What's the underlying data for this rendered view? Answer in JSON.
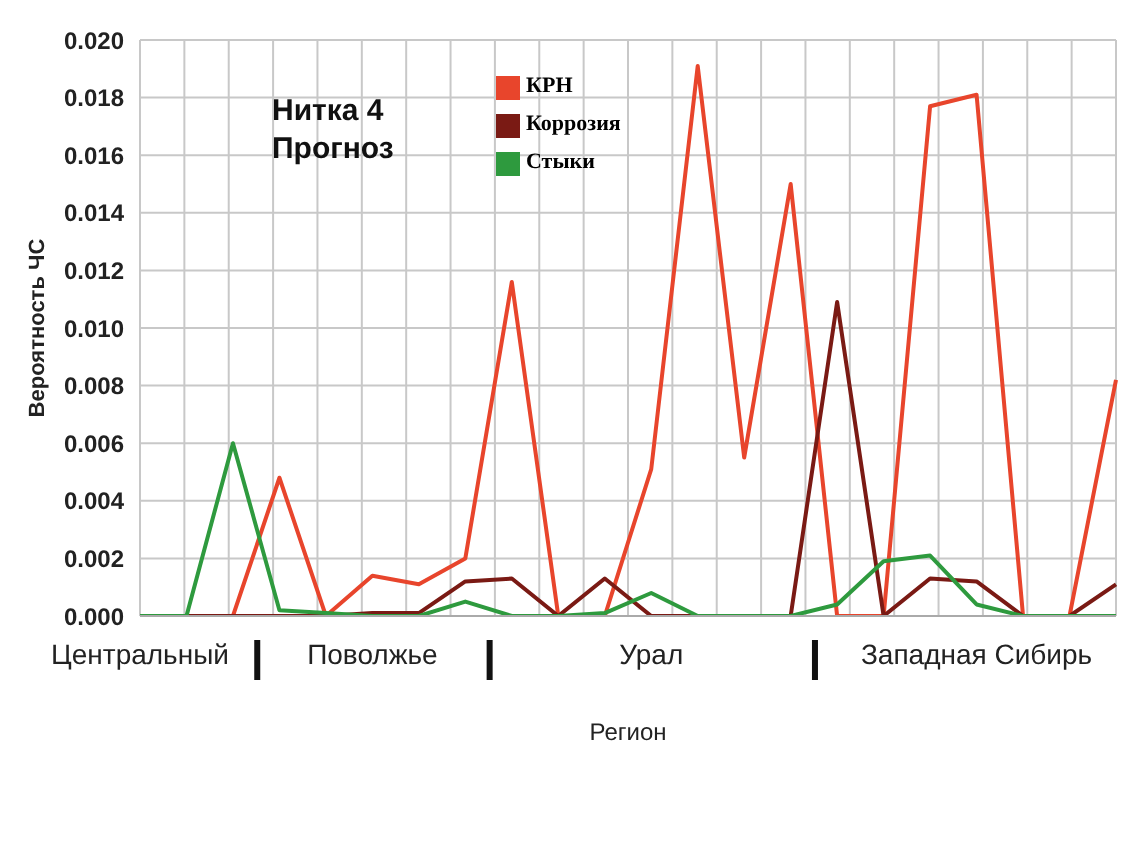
{
  "chart_data": {
    "type": "line",
    "title": "Нитка 4",
    "subtitle": "Прогноз",
    "xlabel": "Регион",
    "ylabel": "Вероятность ЧС",
    "categories": [
      "Центральный",
      null,
      null,
      null,
      null,
      "Поволжье",
      null,
      null,
      null,
      null,
      null,
      "Урал",
      null,
      null,
      null,
      null,
      null,
      null,
      "Западная Сибирь",
      null,
      null,
      null
    ],
    "series": [
      {
        "name": "КРН",
        "color": "#e8452c",
        "values": [
          0,
          0,
          0,
          0.0048,
          0,
          0.0014,
          0.0011,
          0.002,
          0.0116,
          0,
          0,
          0.0051,
          0.0191,
          0.0055,
          0.015,
          0,
          0,
          0.0177,
          0.0181,
          0,
          0,
          0.0082
        ]
      },
      {
        "name": "Коррозия",
        "color": "#7a1a14",
        "values": [
          0,
          0,
          0,
          0,
          0,
          0.0001,
          0.0001,
          0.0012,
          0.0013,
          0,
          0.0013,
          0,
          0,
          0,
          0,
          0.0109,
          0,
          0.0013,
          0.0012,
          0,
          0,
          0.0011
        ]
      },
      {
        "name": "Стыки",
        "color": "#2e9a3e",
        "values": [
          0,
          0,
          0.006,
          0.0002,
          0.0001,
          0,
          0,
          0.0005,
          0,
          0,
          0.0001,
          0.0008,
          0,
          0,
          0,
          0.0004,
          0.0019,
          0.0021,
          0.0004,
          0,
          0,
          0
        ]
      }
    ],
    "ylim": [
      0,
      0.02
    ],
    "yticks": [
      {
        "value": 0,
        "label": "0.000"
      },
      {
        "value": 0.002,
        "label": "0.002"
      },
      {
        "value": 0.004,
        "label": "0.004"
      },
      {
        "value": 0.006,
        "label": "0.006"
      },
      {
        "value": 0.008,
        "label": "0.008"
      },
      {
        "value": 0.01,
        "label": "0.010"
      },
      {
        "value": 0.012,
        "label": "0.012"
      },
      {
        "value": 0.014,
        "label": "0.014"
      },
      {
        "value": 0.016,
        "label": "0.016"
      },
      {
        "value": 0.018,
        "label": "0.018"
      },
      {
        "value": 0.02,
        "label": "0.020"
      }
    ],
    "grid": true,
    "legend": "top",
    "marker": "none",
    "line_style": "solid"
  }
}
